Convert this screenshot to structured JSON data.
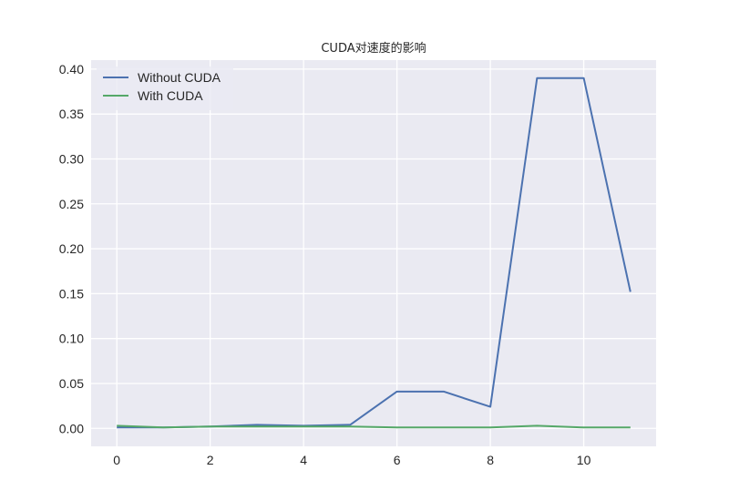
{
  "chart_data": {
    "type": "line",
    "title": "CUDA对速度的影响",
    "xlabel": "",
    "ylabel": "",
    "x": [
      0,
      1,
      2,
      3,
      4,
      5,
      6,
      7,
      8,
      9,
      10,
      11
    ],
    "xlim": [
      -0.55,
      11.55
    ],
    "ylim": [
      -0.02,
      0.41
    ],
    "xticks": [
      0,
      2,
      4,
      6,
      8,
      10
    ],
    "xtick_labels": [
      "0",
      "2",
      "4",
      "6",
      "8",
      "10"
    ],
    "yticks": [
      0.0,
      0.05,
      0.1,
      0.15,
      0.2,
      0.25,
      0.3,
      0.35,
      0.4
    ],
    "ytick_labels": [
      "0.00",
      "0.05",
      "0.10",
      "0.15",
      "0.20",
      "0.25",
      "0.30",
      "0.35",
      "0.40"
    ],
    "grid": true,
    "legend": "top-left",
    "background": "#eaeaf2",
    "series": [
      {
        "name": "Without CUDA",
        "color": "#4c72b0",
        "values": [
          0.001,
          0.001,
          0.002,
          0.004,
          0.003,
          0.004,
          0.041,
          0.041,
          0.024,
          0.39,
          0.39,
          0.152
        ]
      },
      {
        "name": "With CUDA",
        "color": "#55a868",
        "values": [
          0.003,
          0.001,
          0.002,
          0.002,
          0.002,
          0.002,
          0.001,
          0.001,
          0.001,
          0.003,
          0.001,
          0.001
        ]
      }
    ]
  }
}
